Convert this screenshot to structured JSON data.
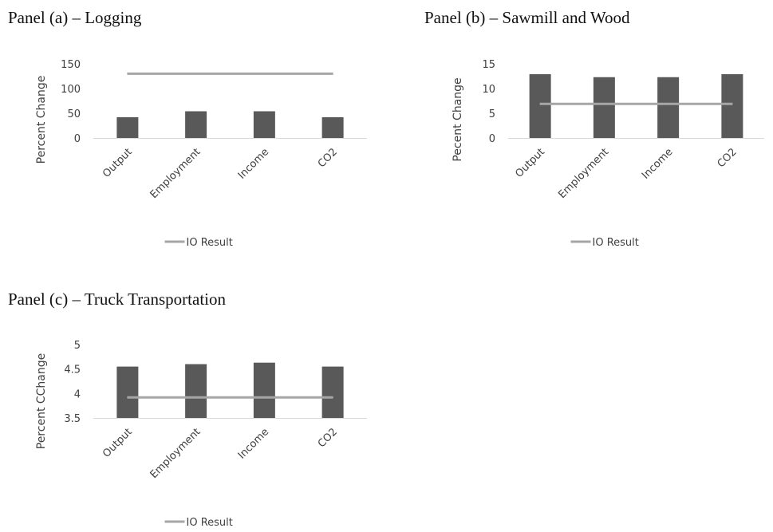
{
  "figure": {
    "colors": {
      "bar": "#595959",
      "io_line": "#a6a6a6",
      "axis": "#d9d9d9",
      "text": "#404040",
      "title": "#111111"
    }
  },
  "chart_data": [
    {
      "type": "bar",
      "title": "Panel (a) – Logging",
      "xlabel": "",
      "ylabel": "Percent Change",
      "categories": [
        "Output",
        "Employment",
        "Income",
        "CO2"
      ],
      "series": [
        {
          "values": [
            42,
            54,
            54,
            42
          ]
        }
      ],
      "reference_line": {
        "name": "IO Result",
        "value": 130
      },
      "ylim": [
        0,
        150
      ],
      "yticks": [
        "150",
        "100",
        "50",
        "0"
      ],
      "ytick_values": [
        150,
        100,
        50,
        0
      ],
      "legend": {
        "label": "IO Result",
        "position": "bottom"
      },
      "grid": false
    },
    {
      "type": "bar",
      "title": "Panel (b) – Sawmill and Wood",
      "xlabel": "",
      "ylabel": "Pecent Change",
      "categories": [
        "Output",
        "Employment",
        "Income",
        "CO2"
      ],
      "series": [
        {
          "values": [
            12.9,
            12.3,
            12.3,
            12.9
          ]
        }
      ],
      "reference_line": {
        "name": "IO Result",
        "value": 6.9
      },
      "ylim": [
        0,
        15
      ],
      "yticks": [
        "15",
        "10",
        "5",
        "0"
      ],
      "ytick_values": [
        15,
        10,
        5,
        0
      ],
      "legend": {
        "label": "IO Result",
        "position": "bottom"
      },
      "grid": false
    },
    {
      "type": "bar",
      "title": "Panel (c) – Truck Transportation",
      "xlabel": "",
      "ylabel": "Percent CChange",
      "categories": [
        "Output",
        "Employment",
        "Income",
        "CO2"
      ],
      "series": [
        {
          "values": [
            4.55,
            4.6,
            4.63,
            4.55
          ]
        }
      ],
      "reference_line": {
        "name": "IO Result",
        "value": 3.92
      },
      "ylim": [
        3.5,
        5
      ],
      "yticks": [
        "5",
        "4.5",
        "4",
        "3.5"
      ],
      "ytick_values": [
        5,
        4.5,
        4,
        3.5
      ],
      "legend": {
        "label": "IO Result",
        "position": "bottom"
      },
      "grid": false
    }
  ]
}
